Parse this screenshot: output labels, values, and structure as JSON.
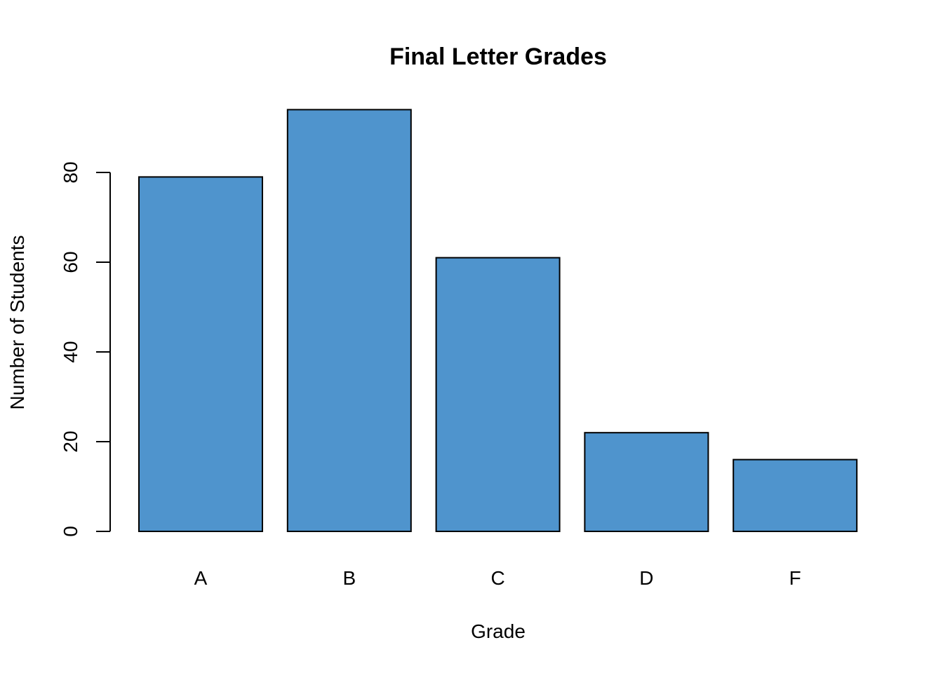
{
  "chart_data": {
    "type": "bar",
    "title": "Final Letter Grades",
    "xlabel": "Grade",
    "ylabel": "Number of Students",
    "categories": [
      "A",
      "B",
      "C",
      "D",
      "F"
    ],
    "values": [
      79,
      94,
      61,
      22,
      16
    ],
    "yticks": [
      0,
      20,
      40,
      60,
      80
    ],
    "ylim": [
      0,
      94
    ],
    "bar_color": "#4F94CD",
    "grid": false,
    "legend": "none"
  }
}
